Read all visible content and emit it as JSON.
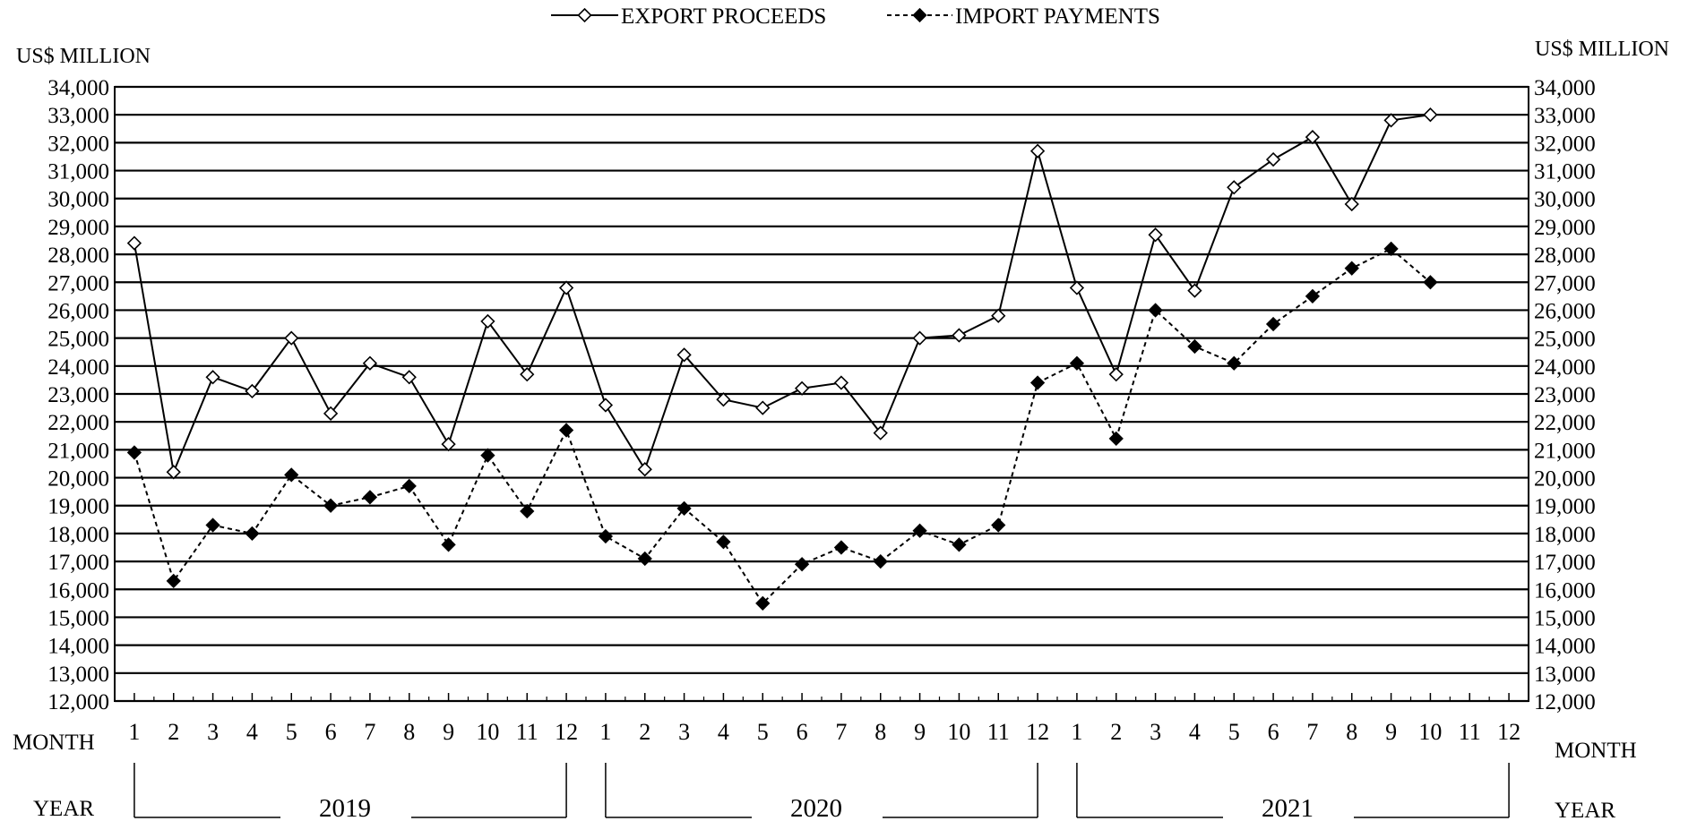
{
  "chart_data": {
    "type": "line",
    "legend_position": "top-center",
    "grid": true,
    "ylabel_left": "US$ MILLION",
    "ylabel_right": "US$ MILLION",
    "xlabel_left": "MONTH",
    "xlabel_right": "MONTH",
    "year_label_left": "YEAR",
    "year_label_right": "YEAR",
    "ylim": [
      12000,
      34000
    ],
    "y_ticks": [
      "12,000",
      "13,000",
      "14,000",
      "15,000",
      "16,000",
      "17,000",
      "18,000",
      "19,000",
      "20,000",
      "21,000",
      "22,000",
      "23,000",
      "24,000",
      "25,000",
      "26,000",
      "27,000",
      "28,000",
      "29,000",
      "30,000",
      "31,000",
      "32,000",
      "33,000",
      "34,000"
    ],
    "x_ticks": [
      "1",
      "2",
      "3",
      "4",
      "5",
      "6",
      "7",
      "8",
      "9",
      "10",
      "11",
      "12",
      "1",
      "2",
      "3",
      "4",
      "5",
      "6",
      "7",
      "8",
      "9",
      "10",
      "11",
      "12",
      "1",
      "2",
      "3",
      "4",
      "5",
      "6",
      "7",
      "8",
      "9",
      "10",
      "11",
      "12"
    ],
    "years": [
      {
        "label": "2019",
        "start_index": 0,
        "end_index": 11
      },
      {
        "label": "2020",
        "start_index": 12,
        "end_index": 23
      },
      {
        "label": "2021",
        "start_index": 24,
        "end_index": 35
      }
    ],
    "series": [
      {
        "name": "EXPORT PROCEEDS",
        "style": "solid",
        "marker": "open-diamond",
        "color": "#000000",
        "values": [
          28400,
          20200,
          23600,
          23100,
          25000,
          22300,
          24100,
          23600,
          21200,
          25600,
          23700,
          26800,
          22600,
          20300,
          24400,
          22800,
          22500,
          23200,
          23400,
          21600,
          25000,
          25100,
          25800,
          31700,
          26800,
          23700,
          28700,
          26700,
          30400,
          31400,
          32200,
          29800,
          32800,
          33000
        ]
      },
      {
        "name": "IMPORT PAYMENTS",
        "style": "dashed",
        "marker": "filled-diamond",
        "color": "#000000",
        "values": [
          20900,
          16300,
          18300,
          18000,
          20100,
          19000,
          19300,
          19700,
          17600,
          20800,
          18800,
          21700,
          17900,
          17100,
          18900,
          17700,
          15500,
          16900,
          17500,
          17000,
          18100,
          17600,
          18300,
          23400,
          24100,
          21400,
          26000,
          24700,
          24100,
          25500,
          26500,
          27500,
          28200,
          27000
        ]
      }
    ]
  }
}
